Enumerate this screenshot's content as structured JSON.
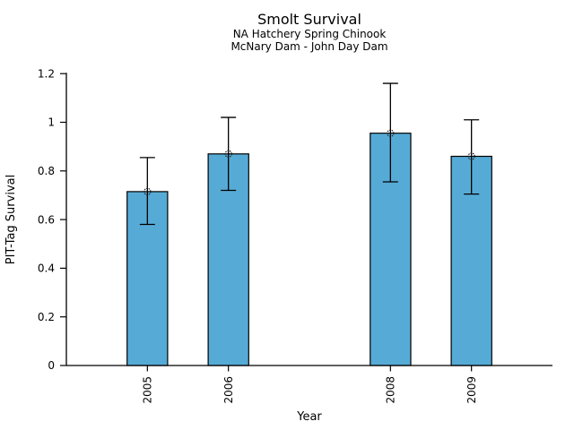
{
  "chart_data": {
    "type": "bar",
    "title": "Smolt Survival",
    "subtitle1": "NA Hatchery Spring Chinook",
    "subtitle2": "McNary Dam - John Day Dam",
    "xlabel": "Year",
    "ylabel": "PIT-Tag Survival",
    "categories": [
      "2005",
      "2006",
      "2008",
      "2009"
    ],
    "x": [
      2005,
      2006,
      2008,
      2009
    ],
    "values": [
      0.715,
      0.87,
      0.955,
      0.86
    ],
    "error_low": [
      0.58,
      0.72,
      0.755,
      0.705
    ],
    "error_high": [
      0.855,
      1.02,
      1.16,
      1.01
    ],
    "marker": "open-circle",
    "xlim": [
      2004,
      2010
    ],
    "ylim": [
      0,
      1.2
    ],
    "yticks": [
      0,
      0.2,
      0.4,
      0.6,
      0.8,
      1,
      1.2
    ],
    "ytick_labels": [
      "0",
      "0.2",
      "0.4",
      "0.6",
      "0.8",
      "1",
      "1.2"
    ],
    "bar_width_years": 0.5,
    "grid": false,
    "legend": false,
    "bar_color": "#56abd6",
    "bar_edge_color": "#000000",
    "axis_color": "#000000",
    "background": "#ffffff"
  }
}
